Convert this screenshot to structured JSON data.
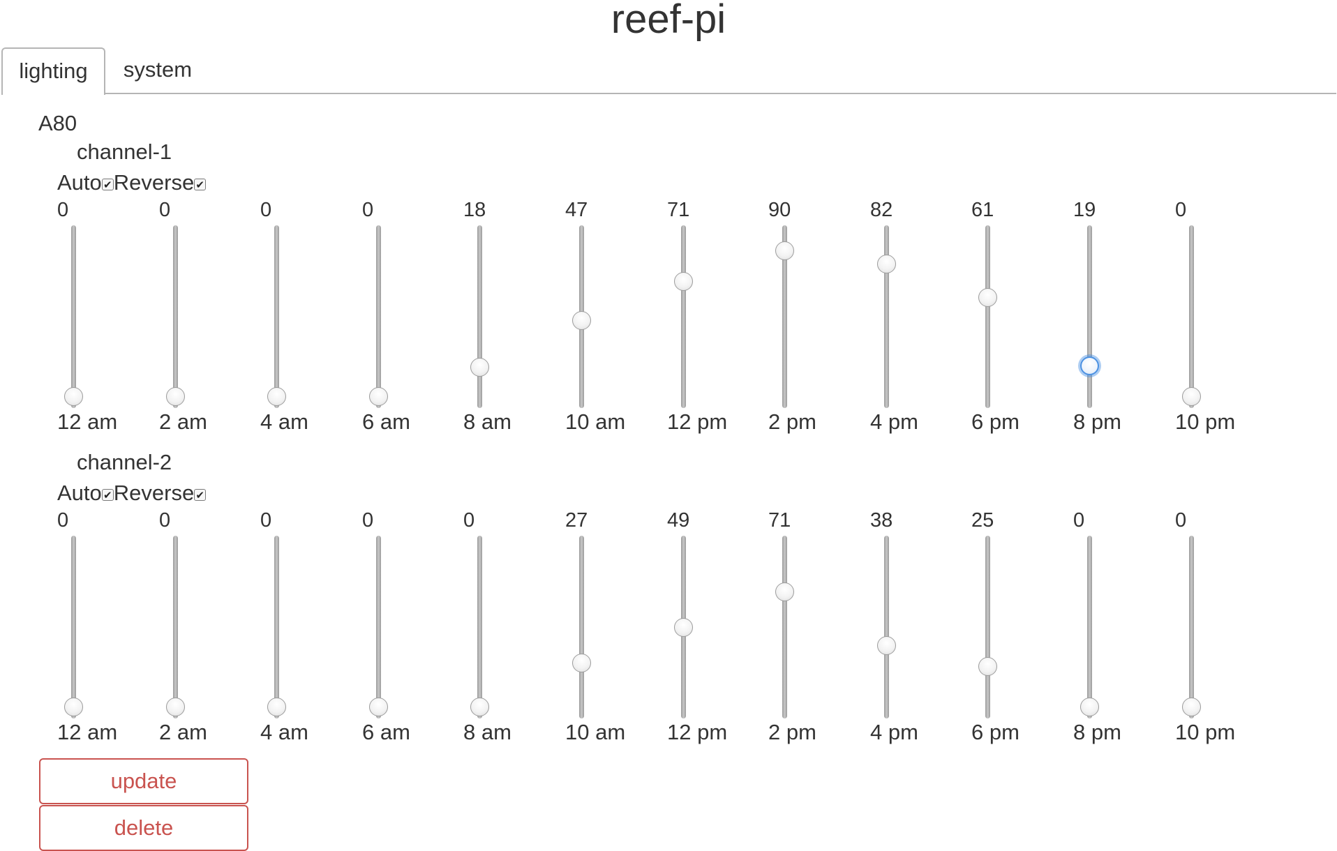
{
  "app": {
    "title": "reef-pi"
  },
  "tabs": [
    {
      "label": "lighting",
      "active": true
    },
    {
      "label": "system",
      "active": false
    }
  ],
  "device": {
    "name": "A80"
  },
  "slider_max": 100,
  "options": {
    "auto_label": "Auto",
    "reverse_label": "Reverse",
    "check_glyph": "✔"
  },
  "times": [
    "12 am",
    "2 am",
    "4 am",
    "6 am",
    "8 am",
    "10 am",
    "12 pm",
    "2 pm",
    "4 pm",
    "6 pm",
    "8 pm",
    "10 pm"
  ],
  "channels": [
    {
      "name": "channel-1",
      "auto": true,
      "reverse": true,
      "values": [
        0,
        0,
        0,
        0,
        18,
        47,
        71,
        90,
        82,
        61,
        19,
        0
      ],
      "focused_index": 10
    },
    {
      "name": "channel-2",
      "auto": true,
      "reverse": true,
      "values": [
        0,
        0,
        0,
        0,
        0,
        27,
        49,
        71,
        38,
        25,
        0,
        0
      ],
      "focused_index": -1
    }
  ],
  "buttons": {
    "update": "update",
    "delete": "delete"
  },
  "colors": {
    "danger": "#c9534f",
    "focus": "#4a90e2",
    "text": "#333333"
  }
}
